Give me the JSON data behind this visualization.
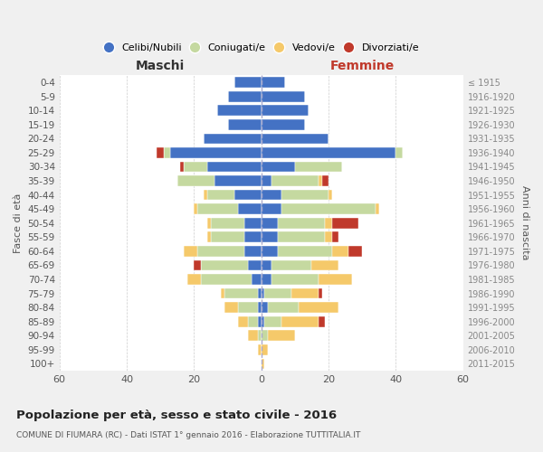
{
  "age_groups": [
    "100+",
    "95-99",
    "90-94",
    "85-89",
    "80-84",
    "75-79",
    "70-74",
    "65-69",
    "60-64",
    "55-59",
    "50-54",
    "45-49",
    "40-44",
    "35-39",
    "30-34",
    "25-29",
    "20-24",
    "15-19",
    "10-14",
    "5-9",
    "0-4"
  ],
  "birth_years": [
    "≤ 1915",
    "1916-1920",
    "1921-1925",
    "1926-1930",
    "1931-1935",
    "1936-1940",
    "1941-1945",
    "1946-1950",
    "1951-1955",
    "1956-1960",
    "1961-1965",
    "1966-1970",
    "1971-1975",
    "1976-1980",
    "1981-1985",
    "1986-1990",
    "1991-1995",
    "1996-2000",
    "2001-2005",
    "2006-2010",
    "2011-2015"
  ],
  "colors": {
    "celibi": "#4472C4",
    "coniugati": "#c5d9a0",
    "vedovi": "#f5c96a",
    "divorziati": "#c0392b"
  },
  "maschi": {
    "celibi": [
      0,
      0,
      0,
      1,
      1,
      1,
      3,
      4,
      5,
      5,
      5,
      7,
      8,
      14,
      16,
      27,
      17,
      10,
      13,
      10,
      8
    ],
    "coniugati": [
      0,
      0,
      1,
      3,
      6,
      10,
      15,
      14,
      14,
      10,
      10,
      12,
      8,
      11,
      7,
      2,
      0,
      0,
      0,
      0,
      0
    ],
    "vedovi": [
      0,
      1,
      3,
      3,
      4,
      1,
      4,
      0,
      4,
      1,
      1,
      1,
      1,
      0,
      0,
      0,
      0,
      0,
      0,
      0,
      0
    ],
    "divorziati": [
      0,
      0,
      0,
      0,
      0,
      0,
      0,
      2,
      0,
      0,
      0,
      0,
      0,
      0,
      1,
      2,
      0,
      0,
      0,
      0,
      0
    ]
  },
  "femmine": {
    "celibi": [
      0,
      0,
      0,
      1,
      2,
      1,
      3,
      3,
      5,
      5,
      5,
      6,
      6,
      3,
      10,
      40,
      20,
      13,
      14,
      13,
      7
    ],
    "coniugati": [
      0,
      0,
      2,
      5,
      9,
      8,
      14,
      12,
      16,
      14,
      14,
      28,
      14,
      14,
      14,
      2,
      0,
      0,
      0,
      0,
      0
    ],
    "vedovi": [
      1,
      2,
      8,
      11,
      12,
      8,
      10,
      8,
      5,
      2,
      2,
      1,
      1,
      1,
      0,
      0,
      0,
      0,
      0,
      0,
      0
    ],
    "divorziati": [
      0,
      0,
      0,
      2,
      0,
      1,
      0,
      0,
      4,
      2,
      8,
      0,
      0,
      2,
      0,
      0,
      0,
      0,
      0,
      0,
      0
    ]
  },
  "title": "Popolazione per età, sesso e stato civile - 2016",
  "subtitle": "COMUNE DI FIUMARA (RC) - Dati ISTAT 1° gennaio 2016 - Elaborazione TUTTITALIA.IT",
  "xlabel_left": "Maschi",
  "xlabel_right": "Femmine",
  "ylabel_left": "Fasce di età",
  "ylabel_right": "Anni di nascita",
  "xlim": 60,
  "bg_color": "#f0f0f0",
  "bar_bg": "#ffffff",
  "legend_labels": [
    "Celibi/Nubili",
    "Coniugati/e",
    "Vedovi/e",
    "Divorziati/e"
  ]
}
